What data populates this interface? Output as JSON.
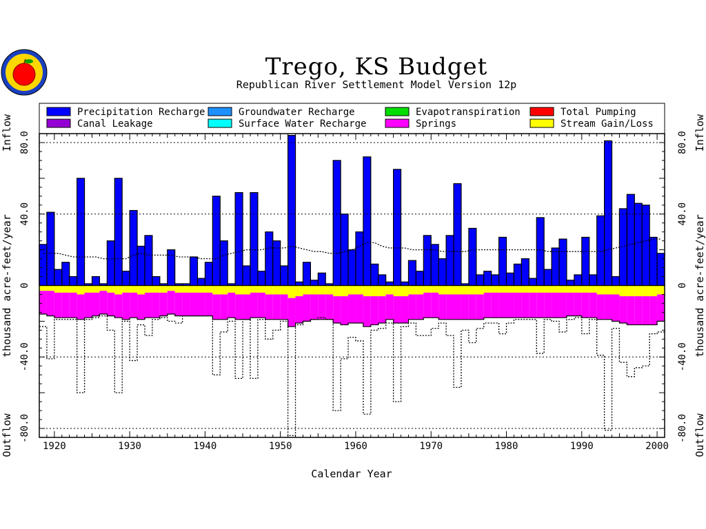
{
  "chart_data": {
    "type": "bar",
    "title": "Trego, KS Budget",
    "subtitle": "Republican River Settlement Model Version 12p",
    "xlabel": "Calendar Year",
    "ylabel": "thousand acre-feet/year",
    "inflow_label": "Inflow",
    "outflow_label": "Outflow",
    "xlim": [
      1918,
      2001
    ],
    "ylim": [
      -85,
      85
    ],
    "x_ticks": [
      1920,
      1930,
      1940,
      1950,
      1960,
      1970,
      1980,
      1990,
      2000
    ],
    "y_ticks": [
      80,
      40,
      0,
      -40,
      -80
    ],
    "y_tick_labels": [
      "80.0",
      "40.0",
      "0",
      "-40.0",
      "-80.0"
    ],
    "grid": "horizontal dotted",
    "legend": [
      {
        "name": "Precipitation Recharge",
        "color": "#0000ff"
      },
      {
        "name": "Groundwater Recharge",
        "color": "#1e90ff"
      },
      {
        "name": "Evapotranspiration",
        "color": "#00dd00"
      },
      {
        "name": "Total Pumping",
        "color": "#ff0000"
      },
      {
        "name": "Canal Leakage",
        "color": "#9400d3"
      },
      {
        "name": "Surface Water Recharge",
        "color": "#00ffff"
      },
      {
        "name": "Springs",
        "color": "#ff00ff"
      },
      {
        "name": "Stream Gain/Loss",
        "color": "#ffff00"
      }
    ],
    "years": [
      1918,
      1919,
      1920,
      1921,
      1922,
      1923,
      1924,
      1925,
      1926,
      1927,
      1928,
      1929,
      1930,
      1931,
      1932,
      1933,
      1934,
      1935,
      1936,
      1937,
      1938,
      1939,
      1940,
      1941,
      1942,
      1943,
      1944,
      1945,
      1946,
      1947,
      1948,
      1949,
      1950,
      1951,
      1952,
      1953,
      1954,
      1955,
      1956,
      1957,
      1958,
      1959,
      1960,
      1961,
      1962,
      1963,
      1964,
      1965,
      1966,
      1967,
      1968,
      1969,
      1970,
      1971,
      1972,
      1973,
      1974,
      1975,
      1976,
      1977,
      1978,
      1979,
      1980,
      1981,
      1982,
      1983,
      1984,
      1985,
      1986,
      1987,
      1988,
      1989,
      1990,
      1991,
      1992,
      1993,
      1994,
      1995,
      1996,
      1997,
      1998,
      1999,
      2000
    ],
    "series": [
      {
        "name": "Precipitation Recharge",
        "values": [
          23,
          41,
          9,
          13,
          5,
          60,
          1,
          5,
          1,
          25,
          60,
          8,
          42,
          22,
          28,
          5,
          1,
          20,
          1,
          1,
          16,
          4,
          13,
          50,
          25,
          1,
          52,
          11,
          52,
          8,
          30,
          25,
          11,
          84,
          2,
          13,
          3,
          7,
          1,
          70,
          40,
          20,
          30,
          72,
          12,
          6,
          2,
          65,
          2,
          14,
          8,
          28,
          23,
          15,
          28,
          57,
          1,
          32,
          6,
          8,
          6,
          27,
          7,
          12,
          15,
          4,
          38,
          9,
          21,
          26,
          3,
          6,
          27,
          6,
          39,
          81,
          5,
          43,
          51,
          46,
          45,
          27,
          18
        ]
      },
      {
        "name": "Stream Gain/Loss",
        "values": [
          -3,
          -3,
          -4,
          -4,
          -4,
          -5,
          -4,
          -4,
          -3,
          -4,
          -5,
          -4,
          -4,
          -5,
          -4,
          -4,
          -4,
          -3,
          -4,
          -4,
          -4,
          -4,
          -4,
          -5,
          -5,
          -4,
          -5,
          -5,
          -4,
          -4,
          -5,
          -5,
          -5,
          -7,
          -6,
          -5,
          -5,
          -5,
          -5,
          -6,
          -6,
          -5,
          -5,
          -6,
          -6,
          -6,
          -5,
          -6,
          -6,
          -5,
          -5,
          -4,
          -4,
          -5,
          -5,
          -5,
          -5,
          -5,
          -5,
          -4,
          -4,
          -4,
          -4,
          -4,
          -4,
          -4,
          -4,
          -4,
          -4,
          -4,
          -4,
          -4,
          -4,
          -4,
          -5,
          -5,
          -5,
          -6,
          -6,
          -6,
          -6,
          -6,
          -5
        ]
      },
      {
        "name": "Springs",
        "values": [
          -13,
          -14,
          -14,
          -14,
          -14,
          -14,
          -14,
          -13,
          -13,
          -13,
          -13,
          -15,
          -14,
          -14,
          -14,
          -14,
          -13,
          -13,
          -13,
          -13,
          -13,
          -13,
          -13,
          -14,
          -14,
          -14,
          -14,
          -14,
          -14,
          -14,
          -14,
          -14,
          -14,
          -16,
          -15,
          -15,
          -14,
          -14,
          -14,
          -15,
          -16,
          -16,
          -16,
          -17,
          -16,
          -15,
          -14,
          -15,
          -15,
          -14,
          -14,
          -14,
          -14,
          -14,
          -14,
          -14,
          -14,
          -14,
          -14,
          -14,
          -14,
          -14,
          -14,
          -14,
          -14,
          -14,
          -14,
          -14,
          -14,
          -14,
          -13,
          -13,
          -14,
          -14,
          -14,
          -14,
          -15,
          -15,
          -16,
          -16,
          -16,
          -16,
          -15
        ]
      },
      {
        "name": "Total Pumping",
        "values": [
          0,
          0,
          0,
          0,
          0,
          0,
          0,
          0,
          0,
          0,
          0,
          0,
          0,
          0,
          0,
          0,
          0,
          0,
          0,
          0,
          0,
          0,
          0,
          0,
          0,
          0,
          0,
          0,
          0,
          0,
          0,
          0,
          0,
          0,
          0,
          0,
          0,
          0,
          0,
          0,
          0,
          0,
          0,
          0,
          0,
          0,
          0,
          0,
          0,
          0,
          0,
          0,
          0,
          0,
          0,
          0,
          0,
          0,
          0,
          0,
          0,
          0,
          0,
          0,
          0,
          0,
          0,
          0,
          0,
          0,
          0,
          0,
          0,
          0,
          0,
          0,
          0,
          0,
          0,
          0,
          0,
          0,
          0
        ]
      },
      {
        "name": "Total Outflow",
        "values": [
          -23,
          -41,
          -19,
          -19,
          -19,
          -60,
          -19,
          -18,
          -17,
          -25,
          -60,
          -20,
          -42,
          -22,
          -28,
          -19,
          -18,
          -20,
          -21,
          -17,
          -17,
          -17,
          -17,
          -50,
          -26,
          -20,
          -52,
          -19,
          -52,
          -19,
          -30,
          -25,
          -20,
          -84,
          -22,
          -20,
          -19,
          -18,
          -19,
          -70,
          -41,
          -29,
          -31,
          -72,
          -25,
          -24,
          -21,
          -65,
          -23,
          -21,
          -28,
          -28,
          -24,
          -21,
          -28,
          -57,
          -25,
          -32,
          -24,
          -21,
          -21,
          -27,
          -21,
          -19,
          -19,
          -19,
          -38,
          -19,
          -20,
          -26,
          -19,
          -18,
          -27,
          -19,
          -39,
          -81,
          -24,
          -43,
          -51,
          -46,
          -45,
          -27,
          -26
        ]
      },
      {
        "name": "Moving Average",
        "values": [
          18,
          18,
          18,
          17,
          16,
          16,
          16,
          16,
          15,
          15,
          15,
          15,
          17,
          18,
          17,
          17,
          17,
          17,
          16,
          16,
          16,
          15,
          15,
          15,
          17,
          18,
          19,
          20,
          20,
          20,
          21,
          21,
          21,
          22,
          21,
          20,
          19,
          19,
          18,
          18,
          19,
          20,
          22,
          24,
          24,
          22,
          21,
          21,
          21,
          20,
          20,
          20,
          20,
          19,
          19,
          19,
          19,
          20,
          20,
          20,
          20,
          20,
          20,
          20,
          20,
          20,
          20,
          19,
          19,
          19,
          19,
          19,
          19,
          19,
          19,
          20,
          21,
          22,
          23,
          24,
          25,
          26,
          26
        ]
      }
    ]
  }
}
